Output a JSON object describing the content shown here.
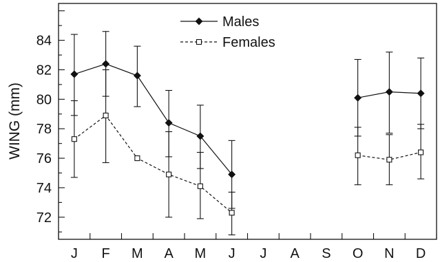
{
  "chart_data": {
    "type": "line",
    "title": "",
    "xlabel": "",
    "ylabel": "WING (mm)",
    "categories": [
      "J",
      "F",
      "M",
      "A",
      "M",
      "J",
      "J",
      "A",
      "S",
      "O",
      "N",
      "D"
    ],
    "ylim": [
      70.5,
      86.5
    ],
    "yticks": [
      "72",
      "74",
      "76",
      "78",
      "80",
      "82",
      "84"
    ],
    "legend_position": "top-center",
    "series": [
      {
        "name": "Males",
        "marker": "filled-diamond",
        "line_style": "solid",
        "color": "#111111",
        "segments": [
          [
            0,
            5
          ],
          [
            9,
            11
          ]
        ],
        "values": [
          81.7,
          82.4,
          81.6,
          78.4,
          77.5,
          74.9,
          null,
          null,
          null,
          80.1,
          80.5,
          80.4
        ],
        "error_low": [
          78.9,
          80.2,
          79.5,
          76.1,
          75.3,
          72.6,
          null,
          null,
          null,
          77.5,
          77.7,
          78.0
        ],
        "error_high": [
          84.4,
          84.6,
          83.6,
          80.6,
          79.6,
          77.2,
          null,
          null,
          null,
          82.7,
          83.2,
          82.8
        ]
      },
      {
        "name": "Females",
        "marker": "open-square",
        "line_style": "dashed",
        "color": "#111111",
        "segments": [
          [
            0,
            5
          ],
          [
            9,
            11
          ]
        ],
        "values": [
          77.3,
          78.9,
          76.0,
          74.9,
          74.1,
          72.3,
          null,
          null,
          null,
          76.2,
          75.9,
          76.4
        ],
        "error_low": [
          74.7,
          75.7,
          null,
          72.0,
          71.9,
          70.8,
          null,
          null,
          null,
          74.2,
          74.2,
          74.6
        ],
        "error_high": [
          79.9,
          82.0,
          null,
          77.8,
          76.4,
          73.7,
          null,
          null,
          null,
          78.1,
          77.6,
          78.3
        ]
      }
    ]
  }
}
